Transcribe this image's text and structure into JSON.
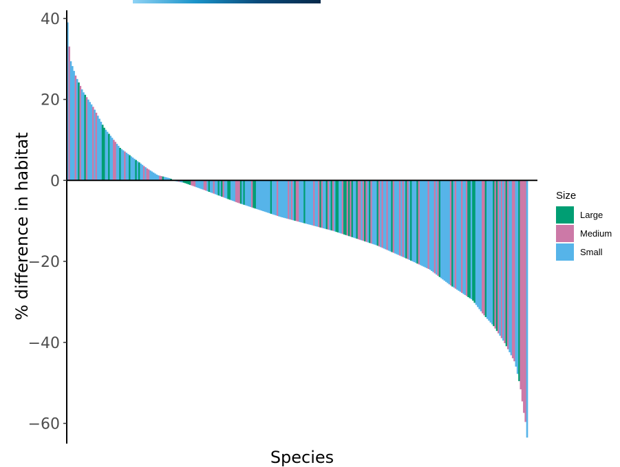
{
  "chart_data": {
    "type": "bar",
    "ylabel": "% difference in habitat",
    "xlabel": "Species",
    "ylim": [
      -65,
      42
    ],
    "yticks": [
      40,
      20,
      0,
      -20,
      -40,
      -60
    ],
    "ytick_labels": [
      "40",
      "20",
      "0",
      "−20",
      "−40",
      "−60"
    ],
    "legend_title": "Size",
    "legend_position": "right",
    "grid": false,
    "series": [
      {
        "name": "Large",
        "color": "#009e73"
      },
      {
        "name": "Medium",
        "color": "#cc79a7"
      },
      {
        "name": "Small",
        "color": "#56b4e9"
      }
    ],
    "n_species": 290,
    "curve_points": [
      [
        0,
        42
      ],
      [
        3,
        30
      ],
      [
        8,
        26
      ],
      [
        15,
        22
      ],
      [
        25,
        18
      ],
      [
        35,
        13
      ],
      [
        50,
        8
      ],
      [
        65,
        5
      ],
      [
        75,
        3
      ],
      [
        85,
        1.3
      ],
      [
        97,
        0.5
      ],
      [
        100,
        0
      ],
      [
        102,
        -0.2
      ],
      [
        110,
        -0.6
      ],
      [
        130,
        -2.5
      ],
      [
        160,
        -5.5
      ],
      [
        200,
        -9
      ],
      [
        250,
        -12.5
      ],
      [
        290,
        -16
      ],
      [
        320,
        -19.5
      ],
      [
        340,
        -22
      ],
      [
        360,
        -26
      ],
      [
        380,
        -29.5
      ],
      [
        390,
        -33
      ],
      [
        400,
        -36
      ],
      [
        410,
        -40
      ],
      [
        420,
        -45
      ],
      [
        425,
        -51
      ],
      [
        428,
        -57
      ],
      [
        430,
        -60
      ],
      [
        431,
        -63
      ],
      [
        432,
        -65
      ]
    ],
    "curve_x_max": 432
  },
  "colors": {
    "axis": "#000000",
    "tick_text": "#4d4d4d",
    "top_gradient_start": "#8fd3f5",
    "top_gradient_end": "#06294a"
  }
}
